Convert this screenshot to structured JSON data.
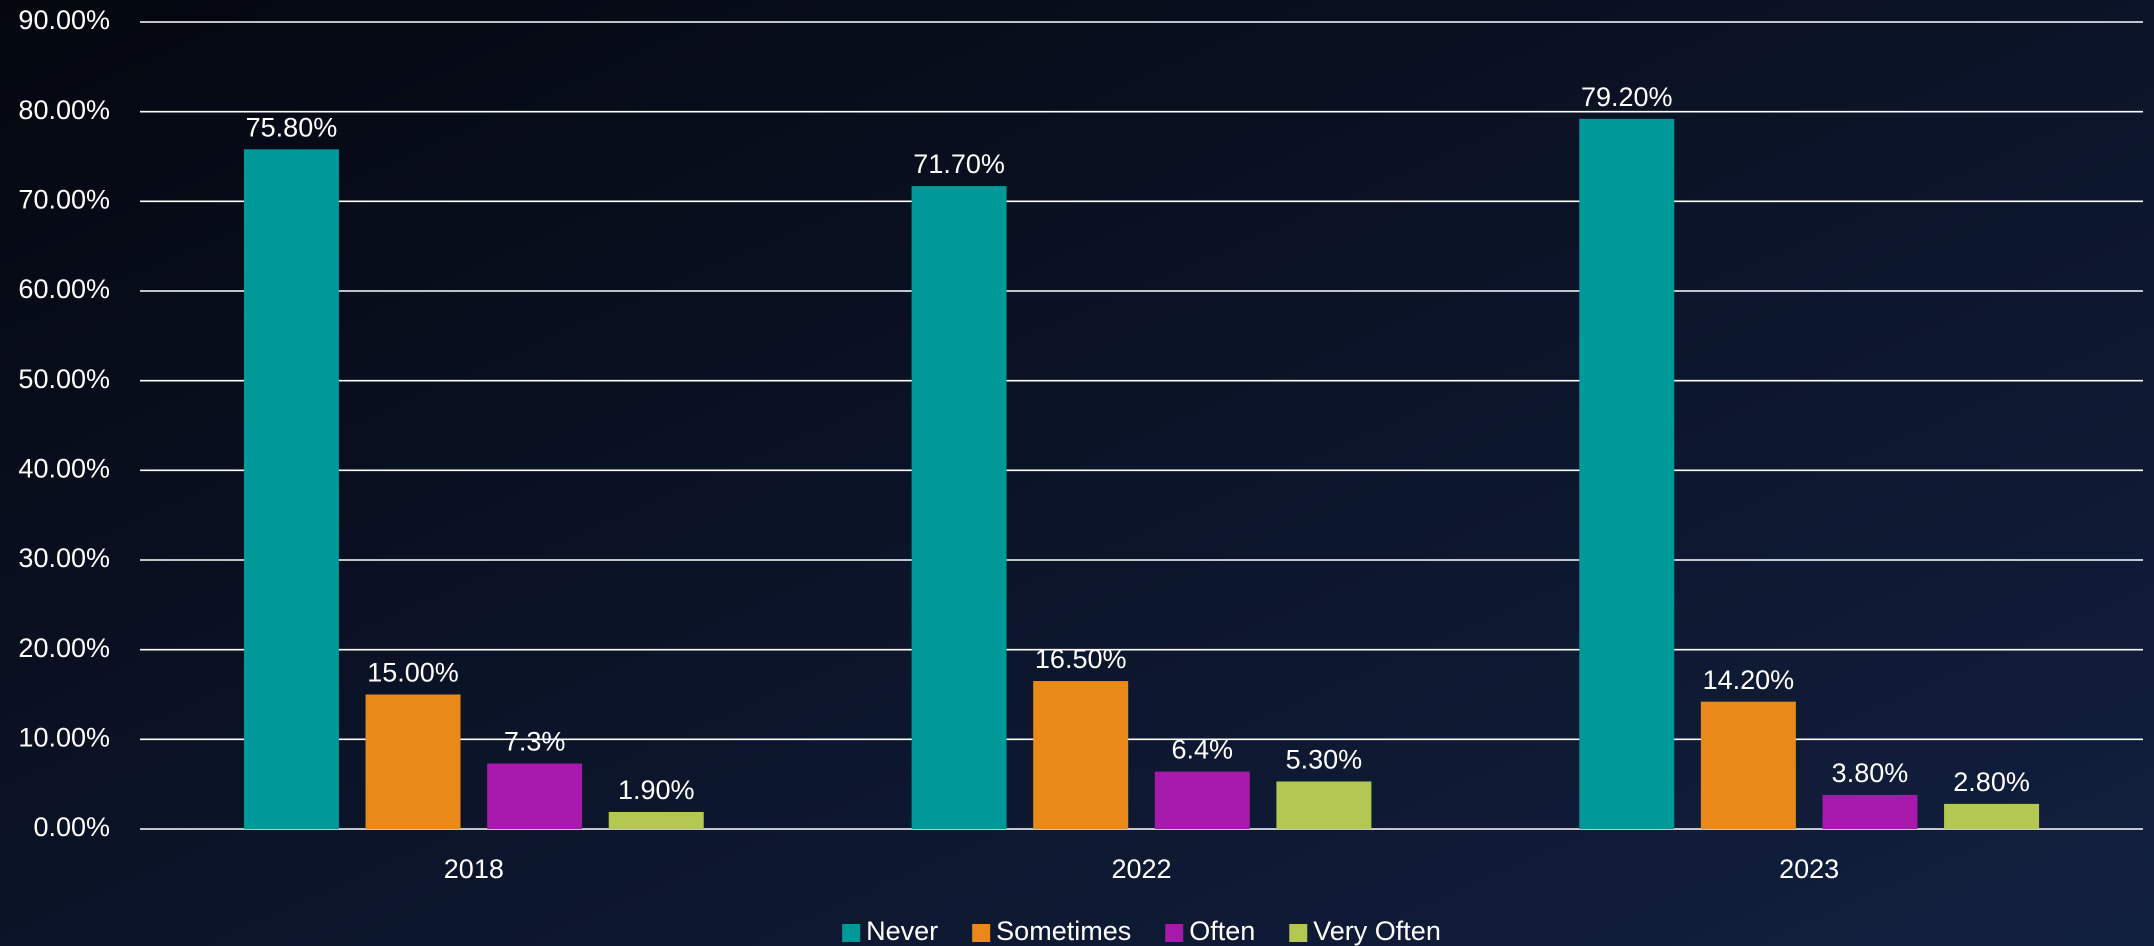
{
  "chart_data": {
    "type": "bar",
    "categories": [
      "2018",
      "2022",
      "2023"
    ],
    "series": [
      {
        "name": "Never",
        "color": "#009999",
        "values": [
          75.8,
          71.7,
          79.2
        ],
        "value_labels": [
          "75.80%",
          "71.70%",
          "79.20%"
        ]
      },
      {
        "name": "Sometimes",
        "color": "#e8891a",
        "values": [
          15.0,
          16.5,
          14.2
        ],
        "value_labels": [
          "15.00%",
          "16.50%",
          "14.20%"
        ]
      },
      {
        "name": "Often",
        "color": "#a61aab",
        "values": [
          7.3,
          6.4,
          3.8
        ],
        "value_labels": [
          "7.3%",
          "6.4%",
          "3.80%"
        ]
      },
      {
        "name": "Very Often",
        "color": "#b3c752",
        "values": [
          1.9,
          5.3,
          2.8
        ],
        "value_labels": [
          "1.90%",
          "5.30%",
          "2.80%"
        ]
      }
    ],
    "ylim": [
      0,
      90
    ],
    "yticks": [
      {
        "value": 0,
        "label": "0.00%"
      },
      {
        "value": 10,
        "label": "10.00%"
      },
      {
        "value": 20,
        "label": "20.00%"
      },
      {
        "value": 30,
        "label": "30.00%"
      },
      {
        "value": 40,
        "label": "40.00%"
      },
      {
        "value": 50,
        "label": "50.00%"
      },
      {
        "value": 60,
        "label": "60.00%"
      },
      {
        "value": 70,
        "label": "70.00%"
      },
      {
        "value": 80,
        "label": "80.00%"
      },
      {
        "value": 90,
        "label": "90.00%"
      }
    ],
    "grid": true,
    "legend": "bottom"
  }
}
